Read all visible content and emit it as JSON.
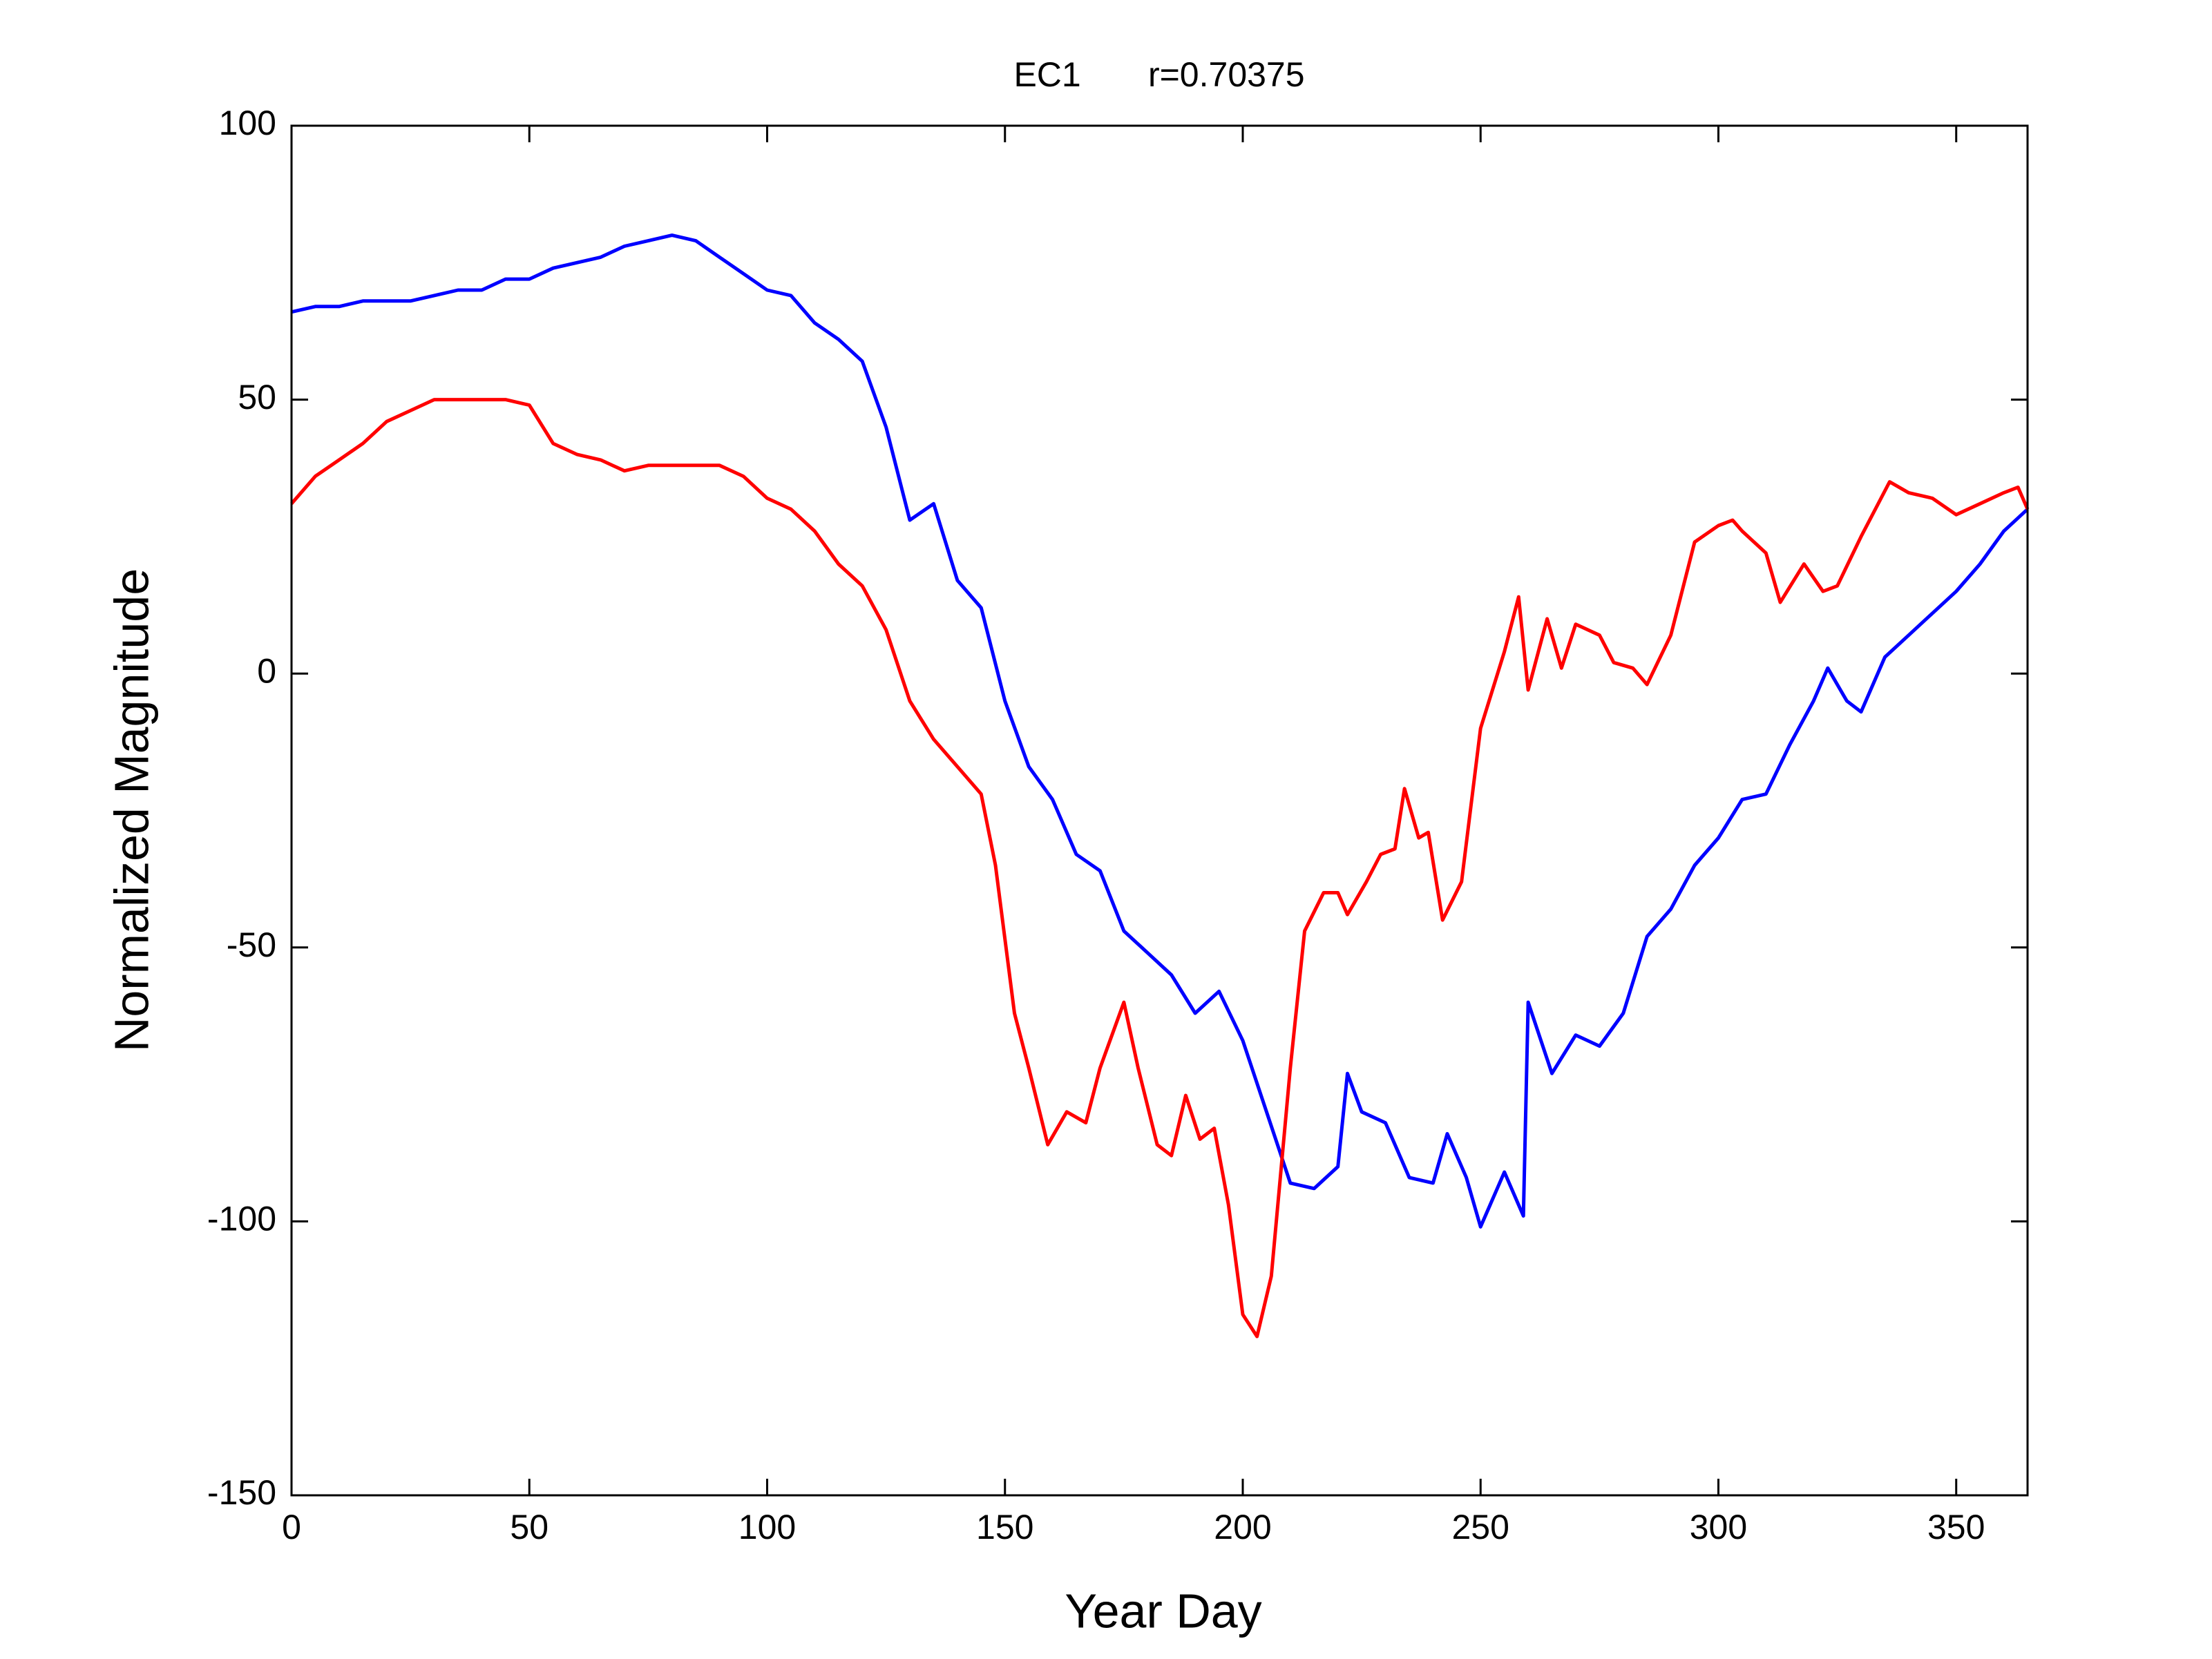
{
  "chart_data": {
    "type": "line",
    "title": "EC1       r=0.70375",
    "xlabel": "Year Day",
    "ylabel": "Normalized Magnitude",
    "xlim": [
      0,
      365
    ],
    "xticks": [
      0,
      50,
      100,
      150,
      200,
      250,
      300,
      350
    ],
    "ylim": [
      -150,
      100
    ],
    "yticks": [
      -150,
      -100,
      -50,
      0,
      50,
      100
    ],
    "grid": false,
    "series": [
      {
        "color": "#0000ff",
        "x": [
          0,
          5,
          10,
          15,
          20,
          25,
          30,
          35,
          40,
          45,
          50,
          55,
          60,
          65,
          70,
          75,
          80,
          85,
          90,
          95,
          100,
          105,
          110,
          115,
          120,
          125,
          130,
          135,
          140,
          145,
          150,
          155,
          160,
          165,
          170,
          175,
          180,
          185,
          190,
          195,
          200,
          205,
          210,
          215,
          220,
          222,
          225,
          230,
          235,
          240,
          243,
          247,
          250,
          255,
          259,
          260,
          265,
          270,
          275,
          280,
          285,
          290,
          295,
          300,
          305,
          310,
          315,
          320,
          323,
          327,
          330,
          335,
          340,
          345,
          350,
          355,
          360,
          365
        ],
        "values": [
          66,
          67,
          67,
          68,
          68,
          68,
          69,
          70,
          70,
          72,
          72,
          74,
          75,
          76,
          78,
          79,
          80,
          79,
          76,
          73,
          70,
          69,
          64,
          61,
          57,
          45,
          28,
          31,
          17,
          12,
          -5,
          -17,
          -23,
          -33,
          -36,
          -47,
          -51,
          -55,
          -62,
          -58,
          -67,
          -80,
          -93,
          -94,
          -90,
          -73,
          -80,
          -82,
          -92,
          -93,
          -84,
          -92,
          -101,
          -91,
          -99,
          -60,
          -73,
          -66,
          -68,
          -62,
          -48,
          -43,
          -35,
          -30,
          -23,
          -22,
          -13,
          -5,
          1,
          -5,
          -7,
          3,
          7,
          11,
          15,
          20,
          26,
          30
        ]
      },
      {
        "color": "#ff0000",
        "x": [
          0,
          5,
          10,
          15,
          20,
          25,
          30,
          35,
          40,
          45,
          50,
          55,
          60,
          65,
          70,
          75,
          80,
          85,
          90,
          95,
          100,
          105,
          110,
          115,
          120,
          125,
          130,
          135,
          140,
          145,
          148,
          152,
          155,
          159,
          163,
          167,
          170,
          175,
          178,
          182,
          185,
          188,
          191,
          194,
          197,
          200,
          203,
          206,
          210,
          213,
          217,
          220,
          222,
          226,
          229,
          232,
          234,
          237,
          239,
          242,
          246,
          250,
          255,
          258,
          260,
          264,
          267,
          270,
          275,
          278,
          282,
          285,
          290,
          295,
          300,
          303,
          305,
          310,
          313,
          318,
          322,
          325,
          330,
          336,
          340,
          345,
          350,
          355,
          360,
          363,
          365
        ],
        "values": [
          31,
          36,
          39,
          42,
          46,
          48,
          50,
          50,
          50,
          50,
          49,
          42,
          40,
          39,
          37,
          38,
          38,
          38,
          38,
          36,
          32,
          30,
          26,
          20,
          16,
          8,
          -5,
          -12,
          -17,
          -22,
          -35,
          -62,
          -72,
          -86,
          -80,
          -82,
          -72,
          -60,
          -72,
          -86,
          -88,
          -77,
          -85,
          -83,
          -97,
          -117,
          -121,
          -110,
          -72,
          -47,
          -40,
          -40,
          -44,
          -38,
          -33,
          -32,
          -21,
          -30,
          -29,
          -45,
          -38,
          -10,
          4,
          14,
          -3,
          10,
          1,
          9,
          7,
          2,
          1,
          -2,
          7,
          24,
          27,
          28,
          26,
          22,
          13,
          20,
          15,
          16,
          25,
          35,
          33,
          32,
          29,
          31,
          33,
          34,
          30
        ]
      }
    ]
  }
}
